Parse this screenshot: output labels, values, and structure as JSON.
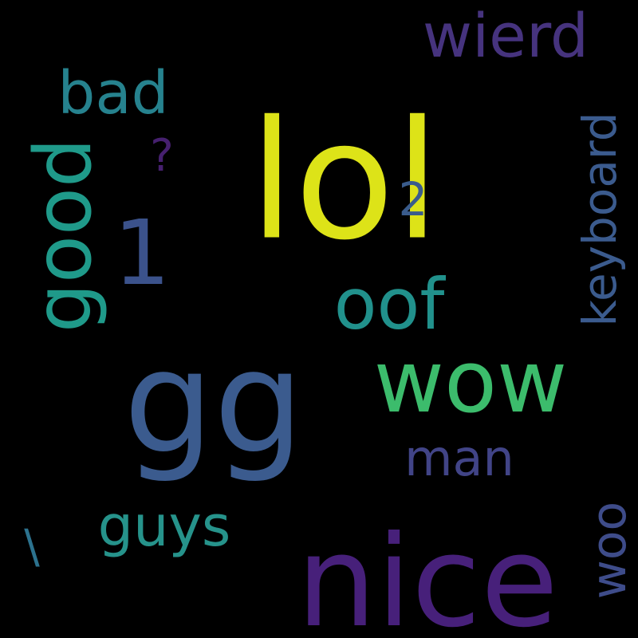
{
  "words": [
    {
      "text": "lol",
      "color": "#dde318"
    },
    {
      "text": "gg",
      "color": "#3b5b8e"
    },
    {
      "text": "nice",
      "color": "#47207a"
    },
    {
      "text": "wow",
      "color": "#3cbc6c"
    },
    {
      "text": "1",
      "color": "#3b528b"
    },
    {
      "text": "good",
      "color": "#1f9a8a"
    },
    {
      "text": "oof",
      "color": "#21918c"
    },
    {
      "text": "wierd",
      "color": "#46337e"
    },
    {
      "text": "bad",
      "color": "#26828e"
    },
    {
      "text": "keyboard",
      "color": "#3b5b8e"
    },
    {
      "text": "man",
      "color": "#414487"
    },
    {
      "text": "guys",
      "color": "#26938b"
    },
    {
      "text": "woo",
      "color": "#3e4c8a"
    },
    {
      "text": "2",
      "color": "#3a5c8c"
    },
    {
      "text": "?",
      "color": "#46206f"
    },
    {
      "text": "\\",
      "color": "#2c728e"
    }
  ]
}
